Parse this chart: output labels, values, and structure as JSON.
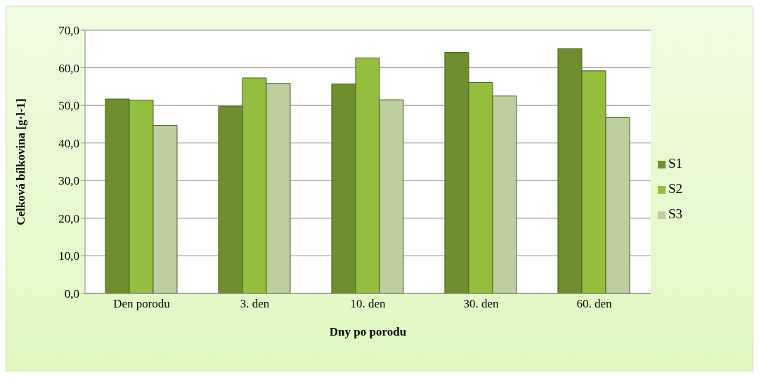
{
  "chart_data": {
    "type": "bar",
    "xlabel": "Dny po porodu",
    "ylabel": "Celková bílkovina [g·l-1]",
    "categories": [
      "Den porodu",
      "3. den",
      "10. den",
      "30. den",
      "60. den"
    ],
    "series": [
      {
        "name": "S1",
        "color": "#6f8f2f",
        "values": [
          51.7,
          49.8,
          55.7,
          64.1,
          65.1
        ]
      },
      {
        "name": "S2",
        "color": "#94bf3e",
        "values": [
          51.4,
          57.3,
          62.6,
          56.1,
          59.2
        ]
      },
      {
        "name": "S3",
        "color": "#bccf9c",
        "values": [
          44.7,
          55.9,
          51.5,
          52.5,
          46.8
        ]
      }
    ],
    "ylim": [
      0,
      70
    ],
    "yticks": [
      {
        "value": 0,
        "label": "0,0"
      },
      {
        "value": 10,
        "label": "10,0"
      },
      {
        "value": 20,
        "label": "20,0"
      },
      {
        "value": 30,
        "label": "30,0"
      },
      {
        "value": 40,
        "label": "40,0"
      },
      {
        "value": 50,
        "label": "50,0"
      },
      {
        "value": 60,
        "label": "60,0"
      },
      {
        "value": 70,
        "label": "70,0"
      }
    ],
    "grid": "y",
    "legend": "right"
  }
}
